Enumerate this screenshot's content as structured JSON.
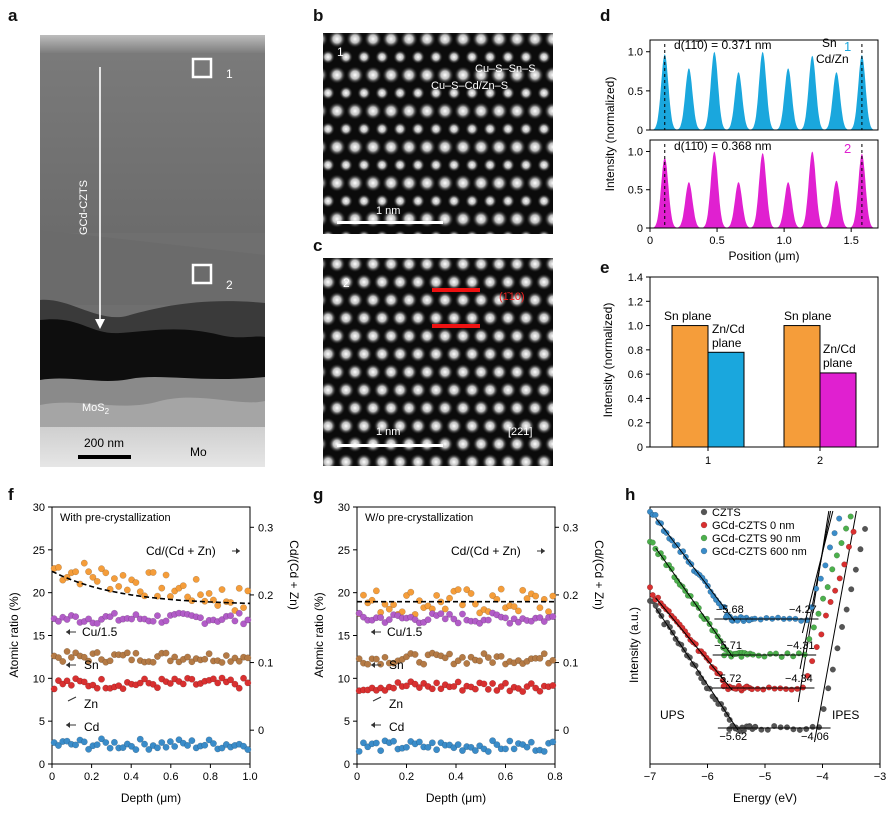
{
  "panels": {
    "a": {
      "letter": "a",
      "sample_label": "GCd-CZTS",
      "box1_label": "1",
      "box2_label": "2",
      "mos2_label": "MoS",
      "mos2_sub": "2",
      "mo_label": "Mo",
      "scalebar_label": "200 nm"
    },
    "b": {
      "letter": "b",
      "region_label": "1",
      "row1_label": "Cu–S–Sn–S",
      "row2_label": "Cu–S–Cd/Zn–S",
      "scalebar_label": "1 nm"
    },
    "c": {
      "letter": "c",
      "region_label": "2",
      "plane_label": "(1̄10)",
      "scalebar_label": "1 nm",
      "zone_axis": "[221]"
    },
    "d": {
      "letter": "d"
    },
    "e": {
      "letter": "e"
    },
    "f": {
      "letter": "f"
    },
    "g": {
      "letter": "g"
    },
    "h": {
      "letter": "h"
    }
  },
  "colors": {
    "cyan": "#1aa7dd",
    "magenta": "#e020d0",
    "orange": "#f59d3a",
    "purple": "#b25cc8",
    "brown": "#b47a45",
    "red": "#d93030",
    "blue": "#3a8cc9",
    "gray": "#555555",
    "green": "#4cb04c"
  },
  "chart_data": [
    {
      "id": "d",
      "type": "line",
      "xlabel": "Position (μm)",
      "ylabel": "Intensity (normalized)",
      "xlim": [
        0,
        1.7
      ],
      "xticks": [
        "0",
        "0.5",
        "1.0",
        "1.5"
      ],
      "yticks": [
        "0",
        "0.5",
        "1.0"
      ],
      "annotations": {
        "top_d": "d(11̄0) = 0.371 nm",
        "top_sn": "Sn",
        "top_cdzn": "Cd/Zn",
        "top_index": "1",
        "bottom_d": "d(11̄0) = 0.368 nm",
        "bottom_index": "2"
      },
      "series": [
        {
          "name": "1",
          "x": [
            0.11,
            0.29,
            0.48,
            0.66,
            0.84,
            1.03,
            1.21,
            1.39,
            1.58
          ],
          "values": [
            0.97,
            0.79,
            1.0,
            0.74,
            1.0,
            0.79,
            0.95,
            0.74,
            0.96
          ]
        },
        {
          "name": "2",
          "x": [
            0.11,
            0.29,
            0.48,
            0.66,
            0.84,
            1.03,
            1.21,
            1.39,
            1.58
          ],
          "values": [
            0.92,
            0.6,
            1.0,
            0.6,
            0.98,
            0.6,
            1.0,
            0.62,
            0.97
          ]
        }
      ]
    },
    {
      "id": "e",
      "type": "bar",
      "xlabel": "",
      "ylabel": "Intensity (normalized)",
      "ylim": [
        0,
        1.4
      ],
      "yticks": [
        "0",
        "0.2",
        "0.4",
        "0.6",
        "0.8",
        "1.0",
        "1.2",
        "1.4"
      ],
      "categories": [
        "1",
        "2"
      ],
      "series": [
        {
          "name": "Sn plane",
          "values": [
            1.0,
            1.0
          ]
        },
        {
          "name": "Zn/Cd plane",
          "values": [
            0.78,
            0.61
          ]
        }
      ],
      "bar_labels": {
        "sn": "Sn plane",
        "zncd_1a": "Zn/Cd",
        "zncd_1b": "plane",
        "zncd_2a": "Zn/Cd",
        "zncd_2b": "plane"
      }
    },
    {
      "id": "f",
      "type": "scatter",
      "title": "With pre-crystallization",
      "xlabel": "Depth (μm)",
      "ylabel": "Atomic ratio (%)",
      "y2label": "Cd/(Cd + Zn)",
      "xlim": [
        0,
        1.0
      ],
      "ylim": [
        0,
        30
      ],
      "y2lim": [
        -0.05,
        0.33
      ],
      "xticks": [
        "0",
        "0.2",
        "0.4",
        "0.6",
        "0.8",
        "1.0"
      ],
      "yticks": [
        "0",
        "5",
        "10",
        "15",
        "20",
        "25",
        "30"
      ],
      "y2ticks": [
        "0",
        "0.1",
        "0.2",
        "0.3"
      ],
      "labels": {
        "ratio": "Cd/(Cd + Zn)",
        "cu": "Cu/1.5",
        "sn": "Sn",
        "zn": "Zn",
        "cd": "Cd"
      },
      "series": [
        {
          "name": "Cd/(Cd + Zn)",
          "axis": "right",
          "mean_start": 0.24,
          "mean_end": 0.19,
          "trend": [
            0.235,
            0.185
          ]
        },
        {
          "name": "Cu/1.5",
          "mean": 17.0
        },
        {
          "name": "Sn",
          "mean": 12.5
        },
        {
          "name": "Zn",
          "mean": 9.4
        },
        {
          "name": "Cd",
          "mean": 2.3
        }
      ]
    },
    {
      "id": "g",
      "type": "scatter",
      "title": "W/o pre-crystallization",
      "xlabel": "Depth (μm)",
      "ylabel": "Atomic ratio (%)",
      "y2label": "Cd/(Cd + Zn)",
      "xlim": [
        0,
        0.8
      ],
      "ylim": [
        0,
        30
      ],
      "y2lim": [
        -0.05,
        0.33
      ],
      "xticks": [
        "0",
        "0.2",
        "0.4",
        "0.6",
        "0.8"
      ],
      "yticks": [
        "0",
        "5",
        "10",
        "15",
        "20",
        "25",
        "30"
      ],
      "y2ticks": [
        "0",
        "0.1",
        "0.2",
        "0.3"
      ],
      "labels": {
        "ratio": "Cd/(Cd + Zn)",
        "cu": "Cu/1.5",
        "sn": "Sn",
        "zn": "Zn",
        "cd": "Cd"
      },
      "series": [
        {
          "name": "Cd/(Cd + Zn)",
          "axis": "right",
          "mean_start": 0.19,
          "mean_end": 0.19,
          "trend": [
            0.19,
            0.19
          ]
        },
        {
          "name": "Cu/1.5",
          "mean": 17.0
        },
        {
          "name": "Sn",
          "mean": 12.3
        },
        {
          "name": "Zn",
          "mean": 9.1
        },
        {
          "name": "Cd",
          "mean": 2.1
        }
      ]
    },
    {
      "id": "h",
      "type": "line",
      "xlabel": "Energy (eV)",
      "ylabel": "Intensity (a.u.)",
      "xlim": [
        -7,
        -3
      ],
      "xticks": [
        "−7",
        "−6",
        "−5",
        "−4",
        "−3"
      ],
      "legend": [
        "CZTS",
        "GCd-CZTS 0 nm",
        "GCd-CZTS 90 nm",
        "GCd-CZTS 600 nm"
      ],
      "labels": {
        "ups": "UPS",
        "ipes": "IPES"
      },
      "onsets": [
        {
          "series": "CZTS",
          "vbm": "−5.62",
          "cbm": "−4.06"
        },
        {
          "series": "GCd-CZTS 0 nm",
          "vbm": "−5.72",
          "cbm": "−4.34"
        },
        {
          "series": "GCd-CZTS 90 nm",
          "vbm": "−5.71",
          "cbm": "−4.31"
        },
        {
          "series": "GCd-CZTS 600 nm",
          "vbm": "−5.68",
          "cbm": "−4.27"
        }
      ]
    }
  ]
}
